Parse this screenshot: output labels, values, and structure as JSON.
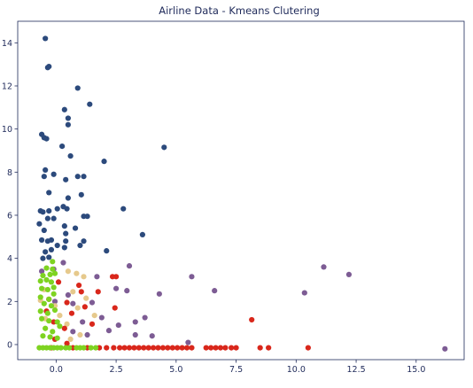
{
  "chart_data": {
    "type": "scatter",
    "title": "Airline Data - Kmeans Clutering",
    "xlabel": "",
    "ylabel": "",
    "xlim": [
      -1.6,
      17.0
    ],
    "ylim": [
      -0.7,
      15.0
    ],
    "xticks": [
      0.0,
      2.5,
      5.0,
      7.5,
      10.0,
      12.5,
      15.0
    ],
    "xtick_labels": [
      "0.0",
      "2.5",
      "5.0",
      "7.5",
      "10.0",
      "12.5",
      "15.0"
    ],
    "yticks": [
      0,
      2,
      4,
      6,
      8,
      10,
      12,
      14
    ],
    "ytick_labels": [
      "0",
      "2",
      "4",
      "6",
      "8",
      "10",
      "12",
      "14"
    ],
    "grid": false,
    "legend": "none",
    "axis_color": "#1f2a5a",
    "series": [
      {
        "color": "#2c4a7c",
        "points": [
          [
            -0.45,
            14.2
          ],
          [
            -0.35,
            12.85
          ],
          [
            -0.3,
            12.9
          ],
          [
            0.9,
            11.9
          ],
          [
            1.4,
            11.15
          ],
          [
            0.35,
            10.9
          ],
          [
            0.5,
            10.5
          ],
          [
            0.5,
            10.2
          ],
          [
            -0.6,
            9.75
          ],
          [
            -0.5,
            9.6
          ],
          [
            -0.4,
            9.55
          ],
          [
            0.25,
            9.2
          ],
          [
            4.5,
            9.15
          ],
          [
            0.6,
            8.75
          ],
          [
            -0.45,
            8.1
          ],
          [
            -0.5,
            7.8
          ],
          [
            2.0,
            8.5
          ],
          [
            -0.1,
            7.9
          ],
          [
            0.4,
            7.65
          ],
          [
            0.9,
            7.8
          ],
          [
            1.15,
            7.8
          ],
          [
            -0.3,
            7.05
          ],
          [
            1.05,
            6.95
          ],
          [
            -0.65,
            6.2
          ],
          [
            -0.55,
            6.15
          ],
          [
            -0.3,
            6.2
          ],
          [
            0.05,
            6.3
          ],
          [
            0.3,
            6.4
          ],
          [
            0.5,
            6.8
          ],
          [
            0.45,
            6.3
          ],
          [
            -0.1,
            5.85
          ],
          [
            -0.35,
            5.85
          ],
          [
            1.15,
            5.95
          ],
          [
            1.3,
            5.95
          ],
          [
            2.8,
            6.3
          ],
          [
            -0.7,
            5.6
          ],
          [
            -0.5,
            5.3
          ],
          [
            0.35,
            5.5
          ],
          [
            0.8,
            5.4
          ],
          [
            0.4,
            5.15
          ],
          [
            3.6,
            5.1
          ],
          [
            -0.6,
            4.85
          ],
          [
            -0.35,
            4.8
          ],
          [
            -0.2,
            4.85
          ],
          [
            0.05,
            4.6
          ],
          [
            0.4,
            4.8
          ],
          [
            1.15,
            4.8
          ],
          [
            1.0,
            4.6
          ],
          [
            -0.45,
            4.3
          ],
          [
            -0.2,
            4.4
          ],
          [
            0.35,
            4.5
          ],
          [
            2.1,
            4.35
          ],
          [
            -0.55,
            4.0
          ],
          [
            -0.3,
            4.05
          ]
        ]
      },
      {
        "color": "#7d5c94",
        "points": [
          [
            -0.6,
            3.4
          ],
          [
            0.3,
            3.8
          ],
          [
            -0.1,
            3.5
          ],
          [
            1.7,
            3.15
          ],
          [
            3.05,
            3.65
          ],
          [
            5.65,
            3.15
          ],
          [
            11.15,
            3.6
          ],
          [
            12.2,
            3.25
          ],
          [
            4.3,
            2.35
          ],
          [
            6.6,
            2.5
          ],
          [
            10.35,
            2.4
          ],
          [
            2.5,
            2.6
          ],
          [
            2.95,
            2.5
          ],
          [
            0.5,
            2.3
          ],
          [
            -0.05,
            2.0
          ],
          [
            0.7,
            1.9
          ],
          [
            1.5,
            1.95
          ],
          [
            1.9,
            1.25
          ],
          [
            3.3,
            1.05
          ],
          [
            3.7,
            1.25
          ],
          [
            2.6,
            0.9
          ],
          [
            2.2,
            0.65
          ],
          [
            3.3,
            0.45
          ],
          [
            4.0,
            0.4
          ],
          [
            1.1,
            1.05
          ],
          [
            1.3,
            0.45
          ],
          [
            0.7,
            0.6
          ],
          [
            5.5,
            0.1
          ],
          [
            16.2,
            -0.2
          ]
        ]
      },
      {
        "color": "#e6c98c",
        "points": [
          [
            0.5,
            3.4
          ],
          [
            0.85,
            3.3
          ],
          [
            1.15,
            3.15
          ],
          [
            -0.5,
            2.55
          ],
          [
            0.7,
            2.45
          ],
          [
            1.25,
            2.15
          ],
          [
            -0.65,
            2.05
          ],
          [
            -0.05,
            1.8
          ],
          [
            0.9,
            1.7
          ],
          [
            1.6,
            1.35
          ],
          [
            0.15,
            1.35
          ],
          [
            -0.45,
            1.2
          ],
          [
            0.45,
            0.95
          ],
          [
            1.0,
            0.45
          ],
          [
            0.6,
            0.25
          ]
        ]
      },
      {
        "color": "#d9271b",
        "points": [
          [
            0.1,
            2.9
          ],
          [
            1.05,
            2.45
          ],
          [
            1.75,
            2.45
          ],
          [
            2.35,
            3.15
          ],
          [
            2.5,
            3.15
          ],
          [
            -0.3,
            2.1
          ],
          [
            0.45,
            1.95
          ],
          [
            1.2,
            1.75
          ],
          [
            0.95,
            2.75
          ],
          [
            -0.4,
            1.55
          ],
          [
            0.65,
            1.45
          ],
          [
            2.45,
            1.7
          ],
          [
            -0.1,
            1.05
          ],
          [
            0.35,
            0.75
          ],
          [
            1.5,
            0.95
          ],
          [
            -0.05,
            0.25
          ],
          [
            0.45,
            0.05
          ],
          [
            8.15,
            1.15
          ],
          [
            -0.2,
            -0.15
          ],
          [
            0.7,
            -0.15
          ],
          [
            1.3,
            -0.15
          ],
          [
            1.8,
            -0.15
          ],
          [
            2.1,
            -0.15
          ],
          [
            2.4,
            -0.15
          ],
          [
            2.65,
            -0.15
          ],
          [
            2.85,
            -0.15
          ],
          [
            3.05,
            -0.15
          ],
          [
            3.25,
            -0.15
          ],
          [
            3.45,
            -0.15
          ],
          [
            3.65,
            -0.15
          ],
          [
            3.85,
            -0.15
          ],
          [
            4.05,
            -0.15
          ],
          [
            4.25,
            -0.15
          ],
          [
            4.45,
            -0.15
          ],
          [
            4.65,
            -0.15
          ],
          [
            4.85,
            -0.15
          ],
          [
            5.05,
            -0.15
          ],
          [
            5.25,
            -0.15
          ],
          [
            5.45,
            -0.15
          ],
          [
            5.65,
            -0.15
          ],
          [
            6.25,
            -0.15
          ],
          [
            6.45,
            -0.15
          ],
          [
            6.65,
            -0.15
          ],
          [
            6.85,
            -0.15
          ],
          [
            7.05,
            -0.15
          ],
          [
            7.3,
            -0.15
          ],
          [
            7.5,
            -0.15
          ],
          [
            8.5,
            -0.15
          ],
          [
            8.85,
            -0.15
          ],
          [
            10.5,
            -0.15
          ]
        ]
      },
      {
        "color": "#7ed321",
        "points": [
          [
            -0.15,
            3.85
          ],
          [
            -0.4,
            3.55
          ],
          [
            -0.15,
            3.5
          ],
          [
            -0.55,
            3.2
          ],
          [
            -0.25,
            3.25
          ],
          [
            -0.05,
            3.3
          ],
          [
            -0.65,
            2.95
          ],
          [
            -0.4,
            3.0
          ],
          [
            -0.2,
            2.9
          ],
          [
            -0.6,
            2.6
          ],
          [
            -0.35,
            2.55
          ],
          [
            -0.1,
            2.65
          ],
          [
            -0.65,
            2.2
          ],
          [
            -0.3,
            2.1
          ],
          [
            -0.1,
            2.35
          ],
          [
            -0.5,
            1.9
          ],
          [
            -0.2,
            1.8
          ],
          [
            -0.65,
            1.55
          ],
          [
            -0.35,
            1.45
          ],
          [
            -0.05,
            1.6
          ],
          [
            -0.6,
            1.2
          ],
          [
            -0.3,
            1.1
          ],
          [
            0.05,
            1.05
          ],
          [
            -0.45,
            0.75
          ],
          [
            -0.15,
            0.6
          ],
          [
            0.15,
            0.85
          ],
          [
            -0.55,
            0.4
          ],
          [
            -0.25,
            0.35
          ],
          [
            0.05,
            0.3
          ],
          [
            -0.7,
            -0.15
          ],
          [
            -0.55,
            -0.15
          ],
          [
            -0.4,
            -0.15
          ],
          [
            -0.25,
            -0.15
          ],
          [
            -0.1,
            -0.15
          ],
          [
            0.05,
            -0.15
          ],
          [
            0.2,
            -0.15
          ],
          [
            0.4,
            -0.15
          ],
          [
            0.55,
            -0.15
          ],
          [
            0.85,
            -0.15
          ],
          [
            1.0,
            -0.15
          ],
          [
            1.15,
            -0.15
          ],
          [
            1.45,
            -0.15
          ],
          [
            1.65,
            -0.15
          ]
        ]
      }
    ]
  }
}
